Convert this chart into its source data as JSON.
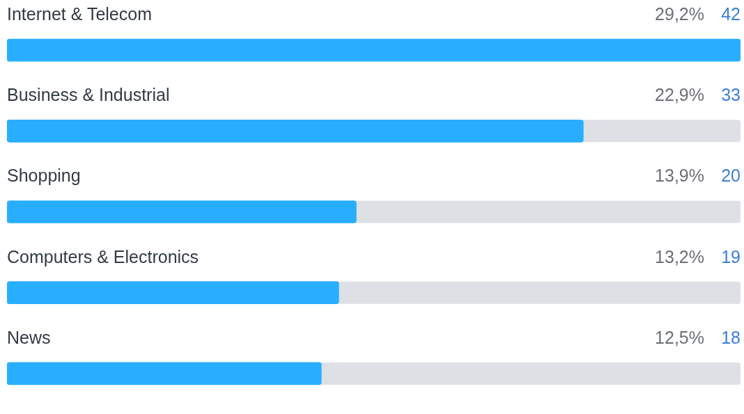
{
  "chart_data": {
    "type": "bar",
    "orientation": "horizontal",
    "categories": [
      "Internet & Telecom",
      "Business & Industrial",
      "Shopping",
      "Computers & Electronics",
      "News"
    ],
    "values": [
      42,
      33,
      20,
      19,
      18
    ],
    "annotations": [
      "29,2%",
      "22,9%",
      "13,9%",
      "13,2%",
      "12,5%"
    ],
    "color": "#29aeff",
    "data_labels": true,
    "legend": false
  }
}
